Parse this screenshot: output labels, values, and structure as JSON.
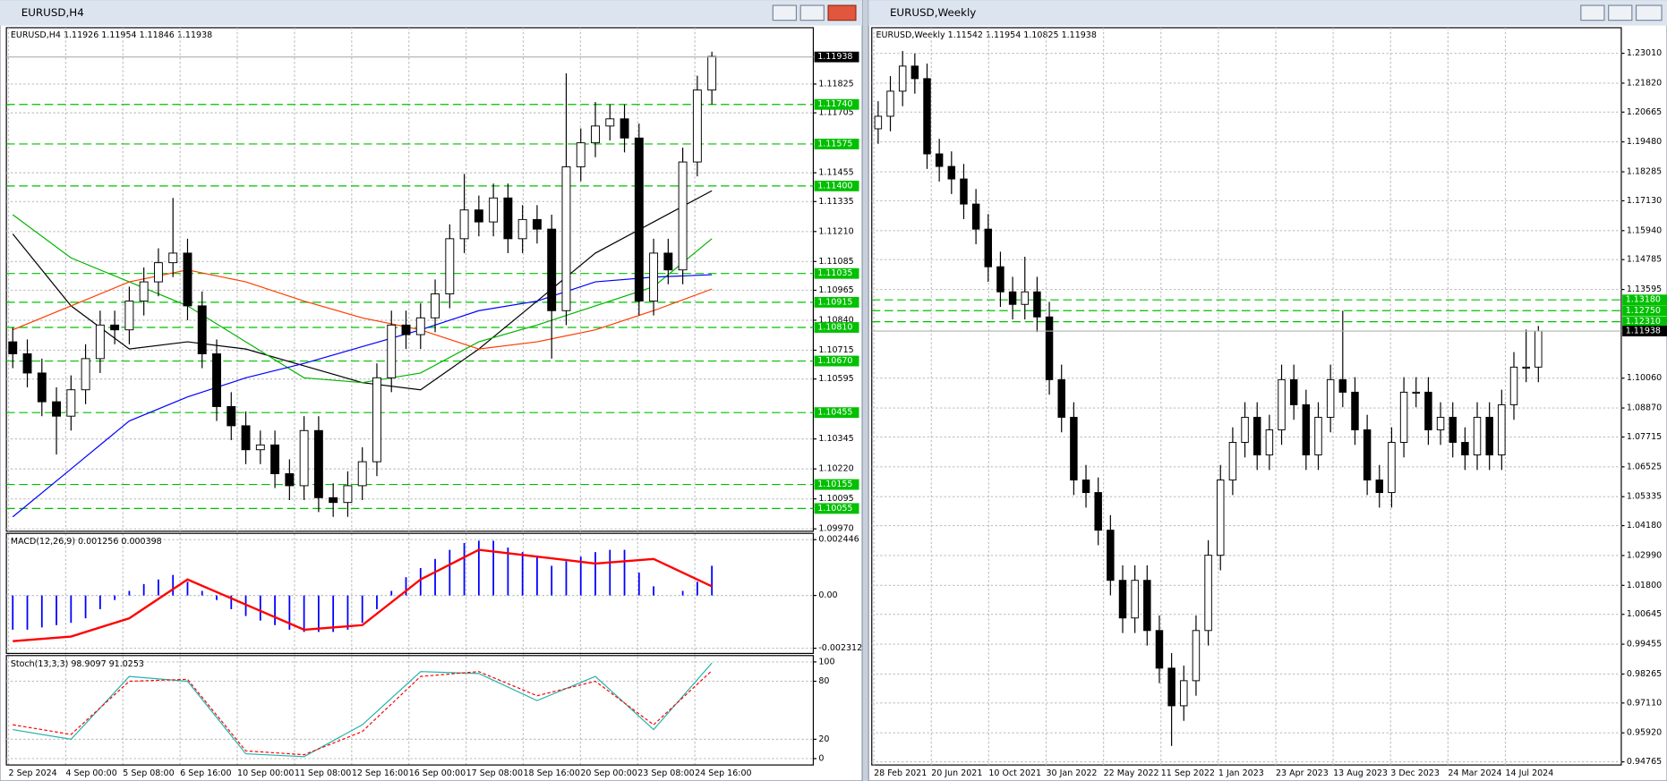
{
  "chart_data": [
    {
      "type": "candlestick",
      "title": "EURUSD,H4",
      "header": "EURUSD,H4  1.11926 1.11954 1.11846 1.11938",
      "ylim": [
        1.0996,
        1.1206
      ],
      "yticks": [
        1.11825,
        1.11705,
        1.11455,
        1.11335,
        {
          "value": 1.1121,
          "label": "1.11210"
        },
        1.11085,
        1.10965,
        {
          "value": 1.1084,
          "label": "1.10840"
        },
        1.10715,
        1.10595,
        1.10345,
        {
          "value": 1.1022,
          "label": "1.10220"
        },
        1.10095,
        {
          "value": 1.0997,
          "label": "1.09970"
        }
      ],
      "levels": [
        {
          "value": 1.1174,
          "label": "1.11740"
        },
        1.11575,
        {
          "value": 1.114,
          "label": "1.11400"
        },
        1.11035,
        1.10915,
        {
          "value": 1.1081,
          "label": "1.10810"
        },
        {
          "value": 1.1067,
          "label": "1.10670"
        },
        1.10455,
        1.10155,
        1.10055
      ],
      "current": 1.11938,
      "level_color": "#00c000",
      "x_labels": [
        "2 Sep 2024",
        "4 Sep 00:00",
        "5 Sep 08:00",
        "6 Sep 16:00",
        "10 Sep 00:00",
        "11 Sep 08:00",
        "12 Sep 16:00",
        "16 Sep 00:00",
        "17 Sep 08:00",
        "18 Sep 16:00",
        "20 Sep 00:00",
        "23 Sep 08:00",
        "24 Sep 16:00"
      ],
      "open": [
        1.1075,
        1.107,
        1.1062,
        1.105,
        1.1044,
        1.1055,
        1.1068,
        1.1082,
        1.108,
        1.1092,
        1.11,
        1.1108,
        1.1112,
        1.109,
        1.107,
        1.1048,
        1.104,
        1.103,
        1.1032,
        1.102,
        1.1015,
        1.1038,
        1.101,
        1.1008,
        1.1015,
        1.1025,
        1.106,
        1.1082,
        1.1078,
        1.1085,
        1.1095,
        1.1118,
        1.113,
        1.1125,
        1.1135,
        1.1118,
        1.1126,
        1.1122,
        1.1088,
        1.1148,
        1.1158,
        1.1165,
        1.1168,
        1.116,
        1.1092,
        1.1112,
        1.1105,
        1.115,
        1.118
      ],
      "high": [
        1.1081,
        1.1076,
        1.1068,
        1.1056,
        1.1061,
        1.1074,
        1.1088,
        1.1088,
        1.1098,
        1.1106,
        1.1114,
        1.1135,
        1.1118,
        1.1096,
        1.1076,
        1.1054,
        1.1046,
        1.1038,
        1.1038,
        1.1026,
        1.1044,
        1.1044,
        1.1016,
        1.1021,
        1.1031,
        1.1066,
        1.1088,
        1.1088,
        1.1091,
        1.1101,
        1.1124,
        1.1145,
        1.1136,
        1.1141,
        1.1141,
        1.1132,
        1.1132,
        1.1128,
        1.1187,
        1.1164,
        1.1175,
        1.1174,
        1.1174,
        1.1166,
        1.1118,
        1.1118,
        1.1156,
        1.1186,
        1.1196
      ],
      "low": [
        1.1064,
        1.1056,
        1.1044,
        1.1028,
        1.1038,
        1.1049,
        1.1062,
        1.1074,
        1.1074,
        1.1086,
        1.1094,
        1.1102,
        1.1084,
        1.1064,
        1.1042,
        1.1034,
        1.1024,
        1.1024,
        1.1014,
        1.1009,
        1.1009,
        1.1004,
        1.1002,
        1.1002,
        1.1009,
        1.1019,
        1.1054,
        1.1072,
        1.1072,
        1.1079,
        1.1089,
        1.1112,
        1.1119,
        1.1119,
        1.1112,
        1.1112,
        1.1116,
        1.1068,
        1.1082,
        1.1142,
        1.1152,
        1.1159,
        1.1154,
        1.1086,
        1.1086,
        1.1099,
        1.1099,
        1.1144,
        1.1174
      ],
      "close": [
        1.107,
        1.1062,
        1.105,
        1.1044,
        1.1055,
        1.1068,
        1.1082,
        1.108,
        1.1092,
        1.11,
        1.1108,
        1.1112,
        1.109,
        1.107,
        1.1048,
        1.104,
        1.103,
        1.1032,
        1.102,
        1.1015,
        1.1038,
        1.101,
        1.1008,
        1.1015,
        1.1025,
        1.106,
        1.1082,
        1.1078,
        1.1085,
        1.1095,
        1.1118,
        1.113,
        1.1125,
        1.1135,
        1.1118,
        1.1126,
        1.1122,
        1.1088,
        1.1148,
        1.1158,
        1.1165,
        1.1168,
        1.116,
        1.1092,
        1.1112,
        1.1105,
        1.115,
        1.118,
        1.1194
      ],
      "moving_averages": [
        {
          "color": "#000000",
          "values": [
            1.112,
            1.109,
            1.1072,
            1.1075,
            1.1072,
            1.1065,
            1.1058,
            1.1055,
            1.1072,
            1.1092,
            1.1112,
            1.1125,
            1.1138
          ]
        },
        {
          "color": "#00b400",
          "values": [
            1.1128,
            1.111,
            1.11,
            1.109,
            1.1075,
            1.106,
            1.1058,
            1.1062,
            1.1075,
            1.1082,
            1.109,
            1.1098,
            1.1118
          ]
        },
        {
          "color": "#ff3c00",
          "values": [
            1.108,
            1.109,
            1.11,
            1.1105,
            1.11,
            1.1092,
            1.1085,
            1.108,
            1.1072,
            1.1075,
            1.108,
            1.1088,
            1.1097
          ]
        },
        {
          "color": "#0000ff",
          "values": [
            1.1002,
            1.1022,
            1.1042,
            1.1052,
            1.106,
            1.1066,
            1.1073,
            1.108,
            1.1088,
            1.1092,
            1.11,
            1.1102,
            1.1103
          ]
        }
      ],
      "macd": {
        "label": "MACD(12,26,9) 0.001256 0.000398",
        "ylim": [
          -0.00254,
          0.00272
        ],
        "yticks": [
          0.002446,
          {
            "value": 0,
            "label": "0.00"
          },
          -0.002312
        ],
        "histogram_color": "#0000ff",
        "signal_color": "#ff0000",
        "histogram": [
          -0.0015,
          -0.0015,
          -0.0014,
          -0.0013,
          -0.0012,
          -0.001,
          -0.0006,
          -0.0002,
          0.0002,
          0.0005,
          0.0007,
          0.0009,
          0.0006,
          0.0002,
          -0.0002,
          -0.0006,
          -0.0009,
          -0.0011,
          -0.0013,
          -0.0015,
          -0.0016,
          -0.0016,
          -0.0016,
          -0.0015,
          -0.0012,
          -0.0006,
          0.0002,
          0.0008,
          0.0012,
          0.0016,
          0.002,
          0.0023,
          0.0024,
          0.0024,
          0.0021,
          0.0019,
          0.0017,
          0.0013,
          0.0015,
          0.0017,
          0.0019,
          0.002,
          0.002,
          0.001,
          0.0004,
          0.0,
          0.0002,
          0.0006,
          0.0013
        ],
        "signal": [
          -0.002,
          -0.0018,
          -0.001,
          0.0007,
          -0.0004,
          -0.0015,
          -0.0013,
          0.0007,
          0.002,
          0.0017,
          0.0014,
          0.0016,
          0.0004
        ]
      },
      "stoch": {
        "label": "Stoch(13,3,3) 98.9097 91.0253",
        "ylim": [
          -6.6,
          106.6
        ],
        "yticks": [
          100,
          80,
          20,
          0
        ],
        "main_color": "#20b2aa",
        "signal_color": "#ff0000",
        "main": [
          30,
          20,
          85,
          80,
          5,
          2,
          35,
          90,
          88,
          60,
          85,
          30,
          98.9
        ],
        "signal": [
          35,
          25,
          80,
          82,
          8,
          4,
          28,
          85,
          90,
          65,
          80,
          35,
          91
        ]
      }
    },
    {
      "type": "candlestick",
      "title": "EURUSD,Weekly",
      "header": "EURUSD,Weekly  1.11542 1.11954 1.10825 1.11938",
      "ylim": [
        0.9464,
        1.2403
      ],
      "yticks": [
        {
          "value": 1.2301,
          "label": "1.23010"
        },
        {
          "value": 1.2182,
          "label": "1.21820"
        },
        1.20665,
        {
          "value": 1.1948,
          "label": "1.19480"
        },
        1.18285,
        {
          "value": 1.1713,
          "label": "1.17130"
        },
        {
          "value": 1.1594,
          "label": "1.15940"
        },
        1.14785,
        1.13595,
        {
          "value": 1.1006,
          "label": "1.10060"
        },
        {
          "value": 1.0887,
          "label": "1.08870"
        },
        1.07715,
        1.06525,
        1.05335,
        {
          "value": 1.0418,
          "label": "1.04180"
        },
        {
          "value": 1.0299,
          "label": "1.02990"
        },
        {
          "value": 1.018,
          "label": "1.01800"
        },
        1.00645,
        0.99455,
        0.98265,
        {
          "value": 0.9711,
          "label": "0.97110"
        },
        {
          "value": 0.9592,
          "label": "0.95920"
        },
        0.94765
      ],
      "levels": [
        {
          "value": 1.1318,
          "label": "1.13180"
        },
        {
          "value": 1.1275,
          "label": "1.12750"
        },
        {
          "value": 1.1231,
          "label": "1.12310"
        }
      ],
      "current": 1.11938,
      "level_color": "#00c000",
      "x_labels": [
        "28 Feb 2021",
        "20 Jun 2021",
        "10 Oct 2021",
        "30 Jan 2022",
        "22 May 2022",
        "11 Sep 2022",
        "1 Jan 2023",
        "23 Apr 2023",
        "13 Aug 2023",
        "3 Dec 2023",
        "24 Mar 2024",
        "14 Jul 2024"
      ],
      "open": [
        1.2,
        1.205,
        1.215,
        1.225,
        1.22,
        1.19,
        1.185,
        1.18,
        1.17,
        1.16,
        1.145,
        1.135,
        1.13,
        1.135,
        1.125,
        1.1,
        1.085,
        1.06,
        1.055,
        1.04,
        1.02,
        1.005,
        1.02,
        1.0,
        0.985,
        0.97,
        0.98,
        1.0,
        1.03,
        1.06,
        1.075,
        1.085,
        1.07,
        1.08,
        1.1,
        1.09,
        1.07,
        1.085,
        1.1,
        1.095,
        1.08,
        1.06,
        1.055,
        1.075,
        1.095,
        1.095,
        1.08,
        1.085,
        1.075,
        1.07,
        1.085,
        1.07,
        1.09,
        1.105,
        1.105
      ],
      "high": [
        1.211,
        1.221,
        1.231,
        1.23,
        1.226,
        1.196,
        1.191,
        1.186,
        1.176,
        1.166,
        1.151,
        1.141,
        1.149,
        1.141,
        1.131,
        1.106,
        1.091,
        1.066,
        1.061,
        1.046,
        1.026,
        1.026,
        1.026,
        1.006,
        0.991,
        0.986,
        1.006,
        1.036,
        1.066,
        1.081,
        1.091,
        1.091,
        1.086,
        1.106,
        1.106,
        1.096,
        1.091,
        1.106,
        1.1275,
        1.101,
        1.086,
        1.066,
        1.081,
        1.101,
        1.101,
        1.101,
        1.091,
        1.091,
        1.081,
        1.091,
        1.091,
        1.096,
        1.111,
        1.12,
        1.1214
      ],
      "low": [
        1.194,
        1.199,
        1.209,
        1.214,
        1.184,
        1.179,
        1.174,
        1.164,
        1.154,
        1.139,
        1.129,
        1.124,
        1.124,
        1.119,
        1.094,
        1.079,
        1.054,
        1.049,
        1.034,
        1.014,
        0.999,
        0.999,
        0.994,
        0.979,
        0.954,
        0.964,
        0.974,
        0.994,
        1.024,
        1.054,
        1.069,
        1.064,
        1.064,
        1.074,
        1.084,
        1.064,
        1.064,
        1.079,
        1.089,
        1.074,
        1.054,
        1.049,
        1.049,
        1.069,
        1.089,
        1.074,
        1.074,
        1.069,
        1.064,
        1.064,
        1.064,
        1.064,
        1.084,
        1.099,
        1.099
      ],
      "close": [
        1.205,
        1.215,
        1.225,
        1.22,
        1.19,
        1.185,
        1.18,
        1.17,
        1.16,
        1.145,
        1.135,
        1.13,
        1.135,
        1.125,
        1.1,
        1.085,
        1.06,
        1.055,
        1.04,
        1.02,
        1.005,
        1.02,
        1.0,
        0.985,
        0.97,
        0.98,
        1.0,
        1.03,
        1.06,
        1.075,
        1.085,
        1.07,
        1.08,
        1.1,
        1.09,
        1.07,
        1.085,
        1.1,
        1.095,
        1.08,
        1.06,
        1.055,
        1.075,
        1.095,
        1.095,
        1.08,
        1.085,
        1.075,
        1.07,
        1.085,
        1.07,
        1.09,
        1.105,
        1.105,
        1.1194
      ]
    }
  ]
}
